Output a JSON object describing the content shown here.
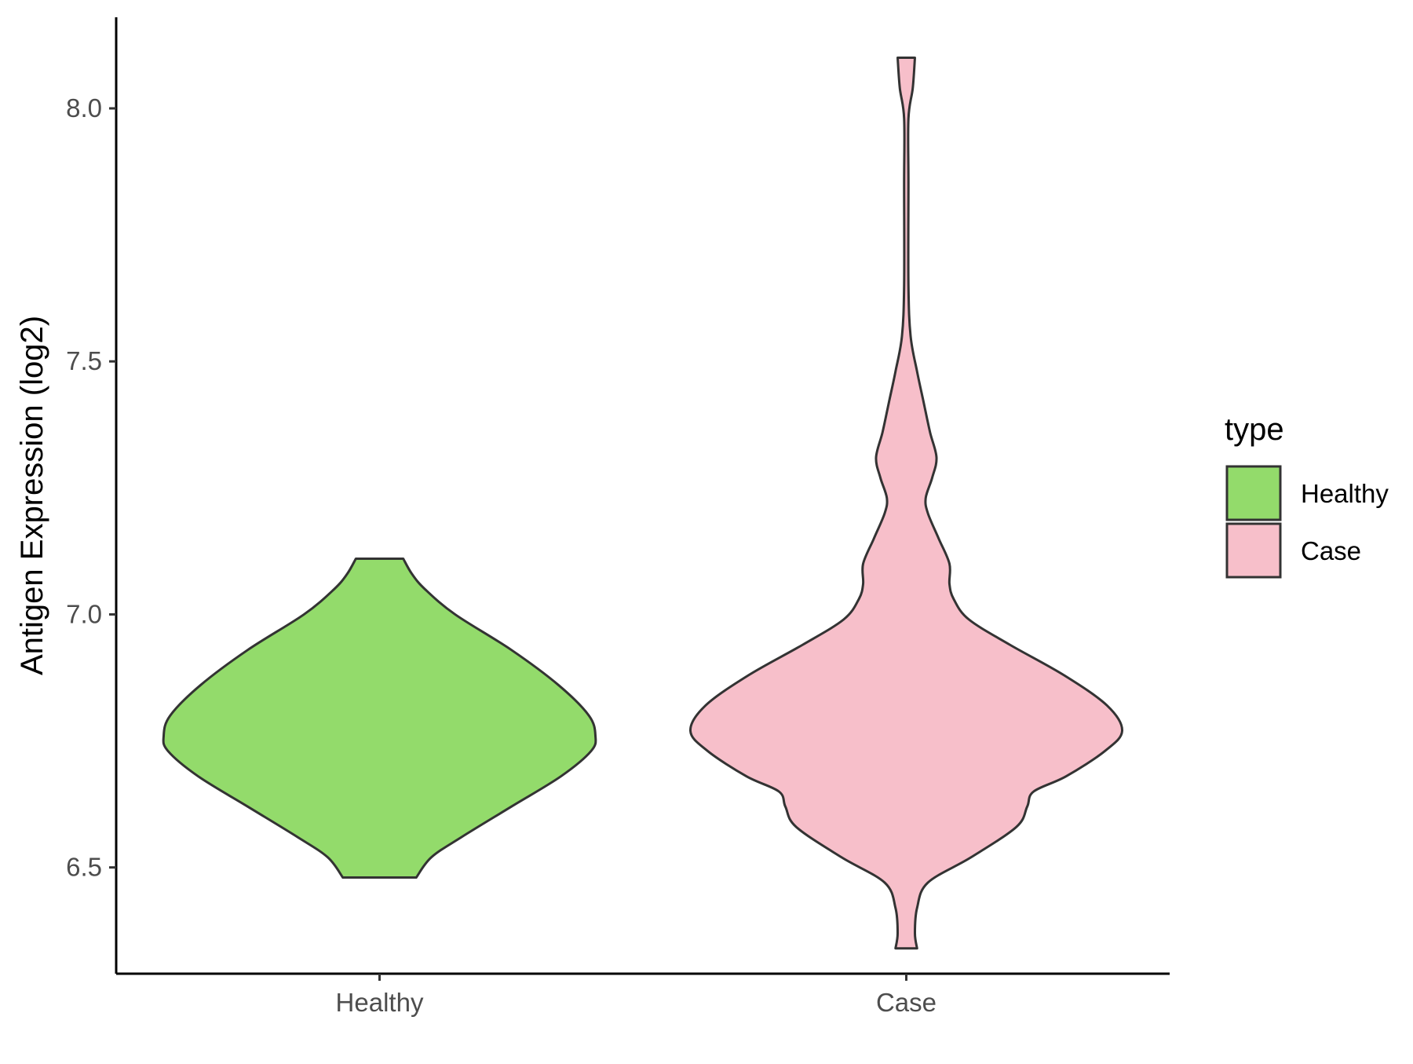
{
  "chart_data": {
    "type": "violin",
    "ylabel": "Antigen Expression (log2)",
    "xlabel": "",
    "categories": [
      "Healthy",
      "Case"
    ],
    "ylim": [
      6.29,
      8.18
    ],
    "yticks": [
      "6.5",
      "7.0",
      "7.5",
      "8.0"
    ],
    "grid": false,
    "legend": {
      "title": "type",
      "placement": "right",
      "entries": [
        "Healthy",
        "Case"
      ]
    },
    "series": [
      {
        "name": "Healthy",
        "color": "#93DB6B",
        "min": 6.48,
        "max": 7.11,
        "density_profile": [
          [
            6.48,
            0.17
          ],
          [
            6.52,
            0.24
          ],
          [
            6.56,
            0.38
          ],
          [
            6.62,
            0.61
          ],
          [
            6.68,
            0.84
          ],
          [
            6.73,
            0.98
          ],
          [
            6.76,
            1.0
          ],
          [
            6.8,
            0.97
          ],
          [
            6.86,
            0.83
          ],
          [
            6.93,
            0.61
          ],
          [
            7.0,
            0.35
          ],
          [
            7.05,
            0.21
          ],
          [
            7.08,
            0.15
          ],
          [
            7.11,
            0.11
          ]
        ]
      },
      {
        "name": "Case",
        "color": "#F7BFCA",
        "min": 6.34,
        "max": 8.1,
        "density_profile": [
          [
            6.34,
            0.05
          ],
          [
            6.37,
            0.04
          ],
          [
            6.42,
            0.05
          ],
          [
            6.47,
            0.1
          ],
          [
            6.52,
            0.3
          ],
          [
            6.58,
            0.51
          ],
          [
            6.62,
            0.56
          ],
          [
            6.65,
            0.59
          ],
          [
            6.68,
            0.74
          ],
          [
            6.73,
            0.92
          ],
          [
            6.77,
            1.0
          ],
          [
            6.82,
            0.93
          ],
          [
            6.88,
            0.73
          ],
          [
            6.94,
            0.48
          ],
          [
            6.99,
            0.29
          ],
          [
            7.03,
            0.22
          ],
          [
            7.06,
            0.2
          ],
          [
            7.1,
            0.2
          ],
          [
            7.15,
            0.15
          ],
          [
            7.2,
            0.1
          ],
          [
            7.23,
            0.09
          ],
          [
            7.27,
            0.12
          ],
          [
            7.31,
            0.14
          ],
          [
            7.36,
            0.11
          ],
          [
            7.42,
            0.08
          ],
          [
            7.48,
            0.05
          ],
          [
            7.55,
            0.02
          ],
          [
            7.65,
            0.01
          ],
          [
            7.85,
            0.01
          ],
          [
            7.98,
            0.01
          ],
          [
            8.04,
            0.03
          ],
          [
            8.1,
            0.04
          ]
        ]
      }
    ]
  }
}
